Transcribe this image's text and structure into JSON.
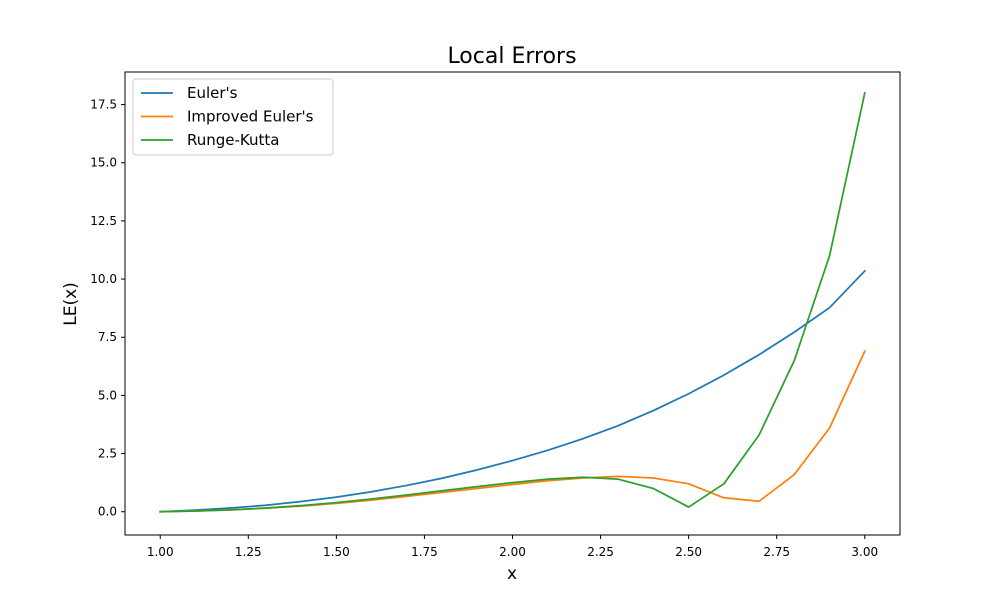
{
  "chart_data": {
    "type": "line",
    "title": "Local Errors",
    "xlabel": "x",
    "ylabel": "LE(x)",
    "xlim": [
      0.9,
      3.1
    ],
    "ylim": [
      -1.0,
      18.9
    ],
    "xticks": [
      1.0,
      1.25,
      1.5,
      1.75,
      2.0,
      2.25,
      2.5,
      2.75,
      3.0
    ],
    "xtick_labels": [
      "1.00",
      "1.25",
      "1.50",
      "1.75",
      "2.00",
      "2.25",
      "2.50",
      "2.75",
      "3.00"
    ],
    "yticks": [
      0.0,
      2.5,
      5.0,
      7.5,
      10.0,
      12.5,
      15.0,
      17.5
    ],
    "ytick_labels": [
      "0.0",
      "2.5",
      "5.0",
      "7.5",
      "10.0",
      "12.5",
      "15.0",
      "17.5"
    ],
    "grid": false,
    "legend_position": "top-left",
    "x": [
      1.0,
      1.1,
      1.2,
      1.3,
      1.4,
      1.5,
      1.6,
      1.7,
      1.8,
      1.9,
      2.0,
      2.1,
      2.2,
      2.3,
      2.4,
      2.5,
      2.6,
      2.7,
      2.8,
      2.9,
      3.0
    ],
    "series": [
      {
        "name": "Euler's",
        "color": "#1f77b4",
        "values": [
          0.0,
          0.07,
          0.16,
          0.28,
          0.44,
          0.63,
          0.86,
          1.13,
          1.44,
          1.8,
          2.2,
          2.64,
          3.14,
          3.7,
          4.35,
          5.07,
          5.87,
          6.75,
          7.72,
          8.77,
          10.35
        ]
      },
      {
        "name": "Improved Euler's",
        "color": "#ff7f0e",
        "values": [
          0.0,
          0.03,
          0.08,
          0.15,
          0.24,
          0.36,
          0.5,
          0.66,
          0.83,
          1.0,
          1.17,
          1.33,
          1.45,
          1.52,
          1.45,
          1.2,
          0.6,
          0.45,
          1.6,
          3.6,
          6.9
        ]
      },
      {
        "name": "Runge-Kutta",
        "color": "#2ca02c",
        "values": [
          0.0,
          0.03,
          0.08,
          0.16,
          0.26,
          0.39,
          0.55,
          0.72,
          0.9,
          1.08,
          1.25,
          1.4,
          1.48,
          1.4,
          1.0,
          0.2,
          1.2,
          3.3,
          6.5,
          11.0,
          18.0
        ]
      }
    ]
  }
}
